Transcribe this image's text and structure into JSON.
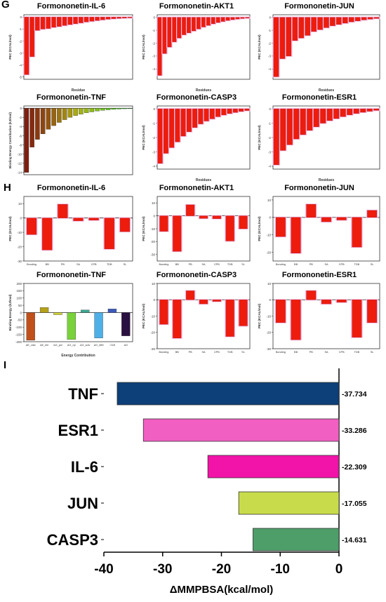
{
  "panel_letters": {
    "g": "G",
    "h": "H",
    "i": "I"
  },
  "chart_data": [
    {
      "panel": "G",
      "type": "bar",
      "title": "Formononetin-IL-6",
      "xlabel": "Residue",
      "ylabel": "PEC (KCAL/mol)",
      "ylim": [
        -5.2,
        0.2
      ],
      "values": [
        -4.8,
        -3.3,
        -1.1,
        -1.0,
        -0.95,
        -0.85,
        -0.78,
        -0.7,
        -0.62,
        -0.55,
        -0.48,
        -0.4,
        -0.34,
        -0.28,
        -0.22,
        -0.17,
        -0.13,
        -0.1,
        -0.08,
        -0.06
      ]
    },
    {
      "panel": "G",
      "type": "bar",
      "title": "Formononetin-AKT1",
      "xlabel": "Residues",
      "ylabel": "PEC (KCAL/mol)",
      "ylim": [
        -4.8,
        0.2
      ],
      "values": [
        -4.5,
        -2.8,
        -2.3,
        -1.9,
        -1.6,
        -1.35,
        -1.2,
        -1.05,
        -0.9,
        -0.75,
        -0.62,
        -0.5,
        -0.4,
        -0.32,
        -0.24,
        -0.18,
        -0.13,
        -0.09,
        -0.06
      ]
    },
    {
      "panel": "G",
      "type": "bar",
      "title": "Formononetin-JUN",
      "xlabel": "Residues",
      "ylabel": "PEC (KCAL/mol)",
      "ylim": [
        -4.8,
        0.2
      ],
      "values": [
        -4.6,
        -3.2,
        -3.0,
        -1.8,
        -1.6,
        -1.4,
        -1.1,
        -0.95,
        -0.8,
        -0.65,
        -0.55,
        -0.45,
        -0.35,
        -0.28,
        -0.2,
        -0.14,
        -0.09
      ]
    },
    {
      "panel": "G",
      "type": "bar",
      "title": "Formononetin-TNF",
      "xlabel": "",
      "ylabel": "Binding Energy Contribution (kJ/mol)",
      "ylim": [
        -14.5,
        0.5
      ],
      "values": [
        -14,
        -8.5,
        -6.8,
        -5.6,
        -4.6,
        -3.8,
        -3.1,
        -2.5,
        -2.0,
        -1.6,
        -1.3,
        -1.0,
        -0.8,
        -0.6,
        -0.45,
        -0.35,
        -0.25,
        -0.18,
        -0.12,
        -0.08
      ]
    },
    {
      "panel": "G",
      "type": "bar",
      "title": "Formononetin-CASP3",
      "xlabel": "Residues",
      "ylabel": "PEC (KCAL/mol)",
      "ylim": [
        -4.2,
        0.2
      ],
      "values": [
        -3.8,
        -3.1,
        -2.7,
        -2.3,
        -1.9,
        -1.6,
        -1.3,
        -1.05,
        -0.85,
        -0.7,
        -0.55,
        -0.43,
        -0.33,
        -0.25,
        -0.18,
        -0.12
      ]
    },
    {
      "panel": "G",
      "type": "bar",
      "title": "Formononetin-ESR1",
      "xlabel": "Residues",
      "ylabel": "PEC (KCAL/mol)",
      "ylim": [
        -4.2,
        0.2
      ],
      "values": [
        -3.9,
        -2.9,
        -2.5,
        -2.1,
        -1.8,
        -1.5,
        -1.25,
        -1.0,
        -0.82,
        -0.68,
        -0.54,
        -0.42,
        -0.32,
        -0.24,
        -0.17,
        -0.11
      ]
    },
    {
      "panel": "H",
      "type": "bar",
      "title": "Formononetin-IL-6",
      "ylabel": "PEC (KCAL/mol)",
      "ylim": [
        -30,
        15
      ],
      "categories": [
        "Bonding",
        "BB",
        "PB",
        "SA",
        "CPB",
        "TDB",
        "SL"
      ],
      "values": [
        -11.5,
        -22.3,
        9.5,
        -2.0,
        -1.5,
        -21.6,
        -9.5
      ]
    },
    {
      "panel": "H",
      "type": "bar",
      "title": "Formononetin-AKT1",
      "ylabel": "PEC (KCAL/mol)",
      "ylim": [
        -35,
        15
      ],
      "categories": [
        "Bonding",
        "BB",
        "PB",
        "SA",
        "CPB",
        "TDB",
        "SL"
      ],
      "values": [
        -12.0,
        -27.5,
        8.5,
        -2.0,
        -2.2,
        -19.5,
        -10.0
      ]
    },
    {
      "panel": "H",
      "type": "bar",
      "title": "Formononetin-JUN",
      "ylabel": "PEC (KCAL/mol)",
      "ylim": [
        -25,
        12
      ],
      "categories": [
        "Bonding",
        "BB",
        "PB",
        "SA",
        "CPB",
        "TDB",
        "SL"
      ],
      "values": [
        -11.0,
        -20.5,
        7.5,
        -2.5,
        -1.5,
        -17.0,
        4.0
      ]
    },
    {
      "panel": "H",
      "type": "bar",
      "title": "Formononetin-TNF",
      "xlabel": "Energy Contribution",
      "ylabel": "Binding Energy (kJ/mol)",
      "ylim": [
        -200,
        200
      ],
      "ytick_values": [
        200,
        150,
        100,
        50,
        0,
        -50,
        -100,
        -150,
        -200
      ],
      "categories": [
        "ΔE_vdw",
        "ΔE_ele",
        "ΔG_pol",
        "ΔG_np",
        "ΔG_solv",
        "ΔG_MM",
        "-TΔS",
        "ΔG"
      ],
      "values": [
        -190,
        35,
        -15,
        -185,
        18,
        -175,
        25,
        -160
      ],
      "colors": [
        "#c0501a",
        "#b5a21a",
        "#d2d23a",
        "#7ad23a",
        "#3aa88f",
        "#4fb0e8",
        "#3c5ab8",
        "#2a1040"
      ]
    },
    {
      "panel": "H",
      "type": "bar",
      "title": "Formononetin-CASP3",
      "ylabel": "PEC (KCAL/mol)",
      "ylim": [
        -30,
        10
      ],
      "categories": [
        "Bonding",
        "BB",
        "PB",
        "SA",
        "CPB",
        "TDB",
        "SL"
      ],
      "values": [
        -15.0,
        -23.5,
        5.5,
        -2.5,
        -1.0,
        -22.5,
        -16.0
      ]
    },
    {
      "panel": "H",
      "type": "bar",
      "title": "Formononetin-ESR1",
      "ylabel": "PEC (KCAL/mol)",
      "ylim": [
        -30,
        10
      ],
      "categories": [
        "Bonding",
        "BB",
        "PB",
        "SA",
        "CPB",
        "TDB",
        "SL"
      ],
      "values": [
        -14.0,
        -24.5,
        5.5,
        -2.5,
        -1.5,
        -23.0,
        -14.0
      ]
    },
    {
      "panel": "I",
      "type": "bar",
      "orientation": "horizontal",
      "title": "",
      "xlabel": "ΔMMPBSA(kcal/mol)",
      "ylabel": "",
      "xlim": [
        -40,
        0
      ],
      "xtick_values": [
        -40,
        -30,
        -20,
        -10,
        0
      ],
      "categories": [
        "TNF",
        "ESR1",
        "IL-6",
        "JUN",
        "CASP3"
      ],
      "values": [
        -37.734,
        -33.286,
        -22.309,
        -17.055,
        -14.631
      ],
      "value_labels": [
        "-37.734",
        "-33.286",
        "-22.309",
        "-17.055",
        "-14.631"
      ],
      "colors": [
        "#0d3f78",
        "#f25fc2",
        "#f213a8",
        "#c8dc4b",
        "#4e9e6a"
      ]
    }
  ]
}
